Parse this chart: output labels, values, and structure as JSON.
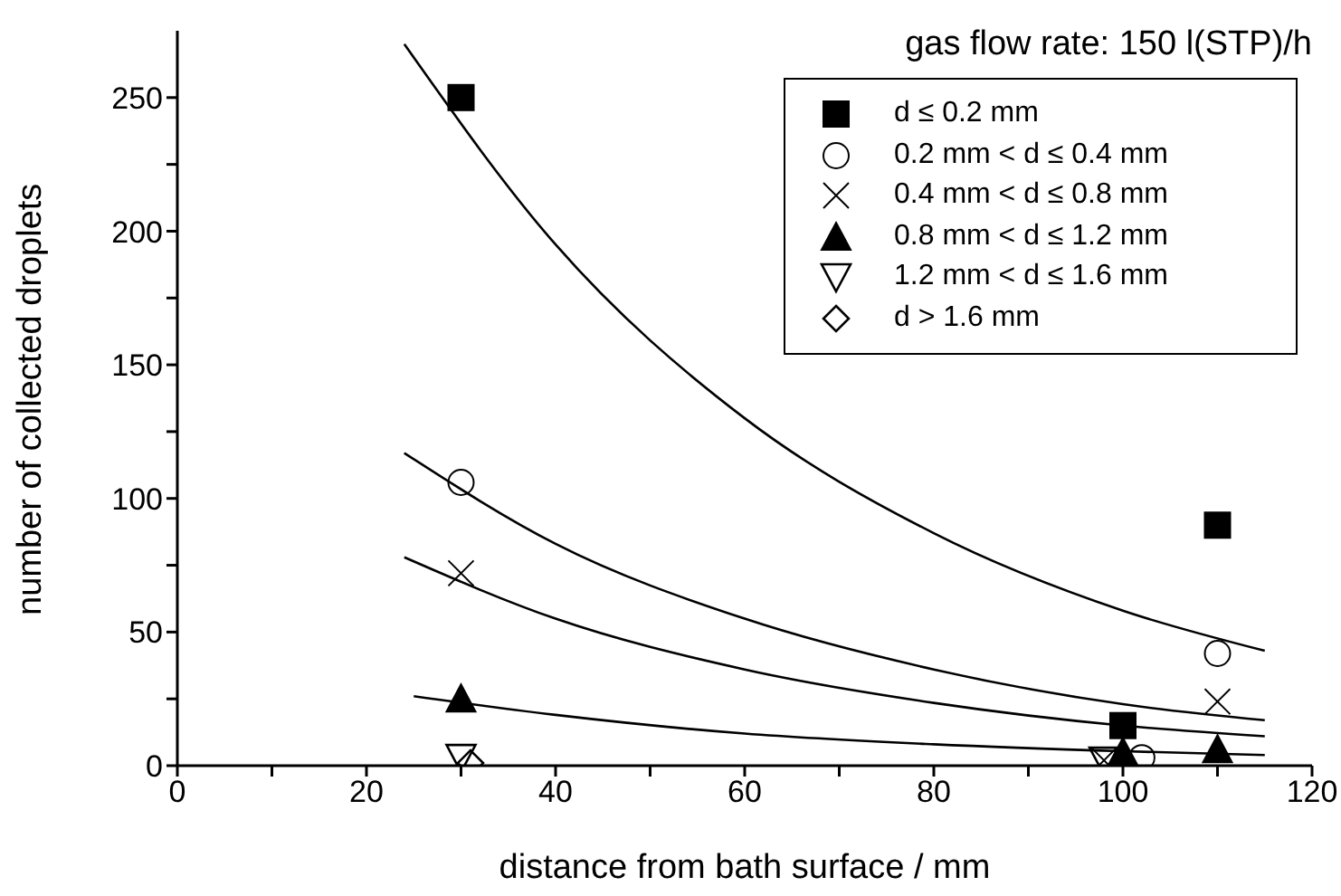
{
  "chart_data": {
    "type": "scatter",
    "xlabel": "distance from bath surface / mm",
    "ylabel": "number of collected droplets",
    "legend_title": "gas flow rate: 150 l(STP)/h",
    "xlim": [
      0,
      120
    ],
    "ylim": [
      0,
      275
    ],
    "xticks": [
      0,
      {
        "value": 10,
        "label": null
      },
      20,
      {
        "value": 30,
        "label": null
      },
      40,
      {
        "value": 50,
        "label": null
      },
      60,
      {
        "value": 70,
        "label": null
      },
      80,
      {
        "value": 90,
        "label": null
      },
      100,
      {
        "value": 110,
        "label": null
      },
      120
    ],
    "yticks": [
      0,
      {
        "value": 25,
        "label": null
      },
      50,
      {
        "value": 75,
        "label": null
      },
      100,
      {
        "value": 125,
        "label": null
      },
      150,
      {
        "value": 175,
        "label": null
      },
      200,
      {
        "value": 225,
        "label": null
      },
      250
    ],
    "grid": false,
    "legend": "top right",
    "series": [
      {
        "name": "d ≤ 0.2 mm",
        "color": "#000000",
        "marker": "square",
        "x": [
          30,
          100,
          110
        ],
        "values": [
          250,
          15,
          90
        ]
      },
      {
        "name": "0.2 mm < d ≤ 0.4 mm",
        "color": "#000000",
        "marker": "circle",
        "x": [
          30,
          102,
          110
        ],
        "values": [
          106,
          3,
          42
        ]
      },
      {
        "name": "0.4 mm < d ≤ 0.8 mm",
        "color": "#000000",
        "marker": "cross",
        "x": [
          30,
          98,
          110
        ],
        "values": [
          72,
          2,
          24
        ]
      },
      {
        "name": "0.8 mm < d ≤ 1.2 mm",
        "color": "#000000",
        "marker": "triangle",
        "x": [
          30,
          100,
          110
        ],
        "values": [
          25,
          5,
          6
        ]
      },
      {
        "name": "1.2 mm < d ≤ 1.6 mm",
        "color": "#000000",
        "marker": "triangle_down",
        "x": [
          30,
          98
        ],
        "values": [
          3,
          2
        ]
      },
      {
        "name": "d > 1.6 mm",
        "color": "#000000",
        "marker": "diamond",
        "x": [
          31
        ],
        "values": [
          1
        ]
      },
      {
        "type": "line",
        "color": "#000000",
        "marker": "none",
        "x": [
          24,
          40,
          60,
          80,
          100,
          115
        ],
        "values": [
          270,
          195,
          130,
          87,
          58,
          43
        ]
      },
      {
        "type": "line",
        "color": "#000000",
        "marker": "none",
        "x": [
          24,
          40,
          60,
          80,
          100,
          115
        ],
        "values": [
          117,
          83,
          55,
          36,
          23,
          17
        ]
      },
      {
        "type": "line",
        "color": "#000000",
        "marker": "none",
        "x": [
          24,
          40,
          60,
          80,
          100,
          115
        ],
        "values": [
          78,
          55,
          36,
          23.5,
          15,
          11
        ]
      },
      {
        "type": "line",
        "color": "#000000",
        "marker": "none",
        "x": [
          25,
          40,
          60,
          80,
          100,
          115
        ],
        "values": [
          26,
          19,
          12,
          8,
          5.4,
          4
        ]
      }
    ]
  }
}
